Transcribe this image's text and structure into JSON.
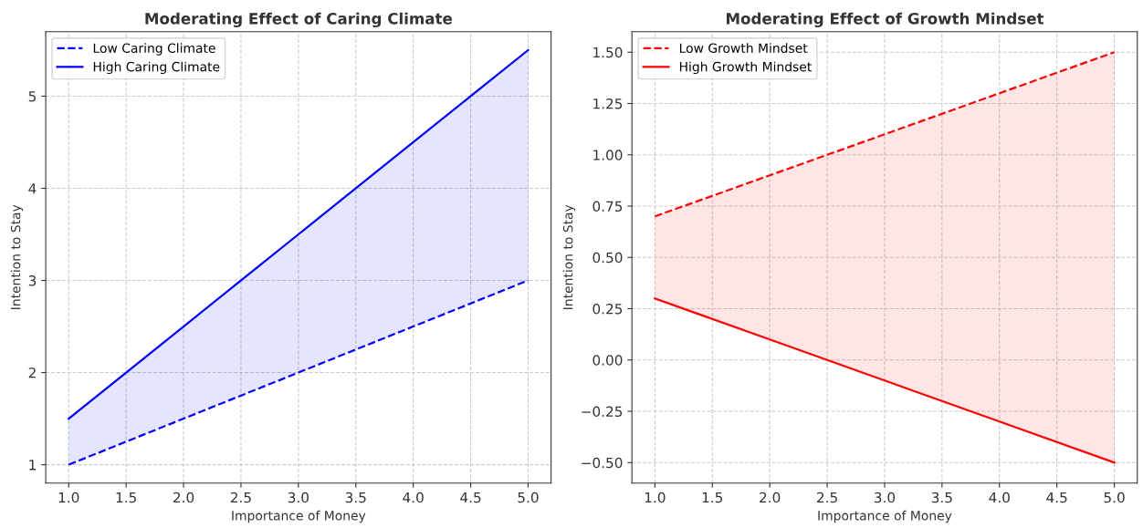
{
  "chart_data": [
    {
      "type": "line",
      "title": "Moderating Effect of Caring Climate",
      "xlabel": "Importance of Money",
      "ylabel": "Intention to Stay",
      "x": [
        1.0,
        2.0,
        3.0,
        4.0,
        5.0
      ],
      "series": [
        {
          "name": "Low Caring Climate",
          "color": "#0000ff",
          "values": [
            1.0,
            1.5,
            2.0,
            2.5,
            3.0
          ],
          "line_style": "dashed"
        },
        {
          "name": "High Caring Climate",
          "color": "#0000ff",
          "values": [
            1.5,
            2.5,
            3.5,
            4.5,
            5.5
          ],
          "line_style": "solid",
          "lower": [
            1.0,
            1.5,
            2.0,
            2.5,
            3.0
          ],
          "upper": [
            1.5,
            2.5,
            3.5,
            4.5,
            5.5
          ]
        }
      ],
      "xlim": [
        0.8,
        5.2
      ],
      "ylim": [
        0.8,
        5.7
      ],
      "xticks": [
        {
          "value": 1.0,
          "label": "1.0"
        },
        {
          "value": 1.5,
          "label": "1.5"
        },
        {
          "value": 2.0,
          "label": "2.0"
        },
        {
          "value": 2.5,
          "label": "2.5"
        },
        {
          "value": 3.0,
          "label": "3.0"
        },
        {
          "value": 3.5,
          "label": "3.5"
        },
        {
          "value": 4.0,
          "label": "4.0"
        },
        {
          "value": 4.5,
          "label": "4.5"
        },
        {
          "value": 5.0,
          "label": "5.0"
        }
      ],
      "yticks": [
        1,
        2,
        3,
        4,
        5
      ],
      "grid": true,
      "legend": "top left",
      "marker": "none"
    },
    {
      "type": "line",
      "title": "Moderating Effect of Growth Mindset",
      "xlabel": "Importance of Money",
      "ylabel": "Intention to Stay",
      "x": [
        1.0,
        2.0,
        3.0,
        4.0,
        5.0
      ],
      "series": [
        {
          "name": "Low Growth Mindset",
          "color": "#ff0000",
          "values": [
            0.7,
            0.9,
            1.1,
            1.3,
            1.5
          ],
          "line_style": "dashed",
          "lower": [
            0.3,
            0.1,
            -0.1,
            -0.3,
            -0.5
          ],
          "upper": [
            0.7,
            0.9,
            1.1,
            1.3,
            1.5
          ]
        },
        {
          "name": "High Growth Mindset",
          "color": "#ff0000",
          "values": [
            0.3,
            0.1,
            -0.1,
            -0.3,
            -0.5
          ],
          "line_style": "solid"
        }
      ],
      "xlim": [
        0.8,
        5.2
      ],
      "ylim": [
        -0.6,
        1.6
      ],
      "xticks": [
        {
          "value": 1.0,
          "label": "1.0"
        },
        {
          "value": 1.5,
          "label": "1.5"
        },
        {
          "value": 2.0,
          "label": "2.0"
        },
        {
          "value": 2.5,
          "label": "2.5"
        },
        {
          "value": 3.0,
          "label": "3.0"
        },
        {
          "value": 3.5,
          "label": "3.5"
        },
        {
          "value": 4.0,
          "label": "4.0"
        },
        {
          "value": 4.5,
          "label": "4.5"
        },
        {
          "value": 5.0,
          "label": "5.0"
        }
      ],
      "yticks": [
        {
          "value": -0.5,
          "label": "−0.50"
        },
        {
          "value": -0.25,
          "label": "−0.25"
        },
        {
          "value": 0,
          "label": "0.00"
        },
        {
          "value": 0.25,
          "label": "0.25"
        },
        {
          "value": 0.5,
          "label": "0.50"
        },
        {
          "value": 0.75,
          "label": "0.75"
        },
        {
          "value": 1.0,
          "label": "1.00"
        },
        {
          "value": 1.25,
          "label": "1.25"
        },
        {
          "value": 1.5,
          "label": "1.50"
        }
      ],
      "grid": true,
      "legend": "top left",
      "marker": "none"
    }
  ]
}
